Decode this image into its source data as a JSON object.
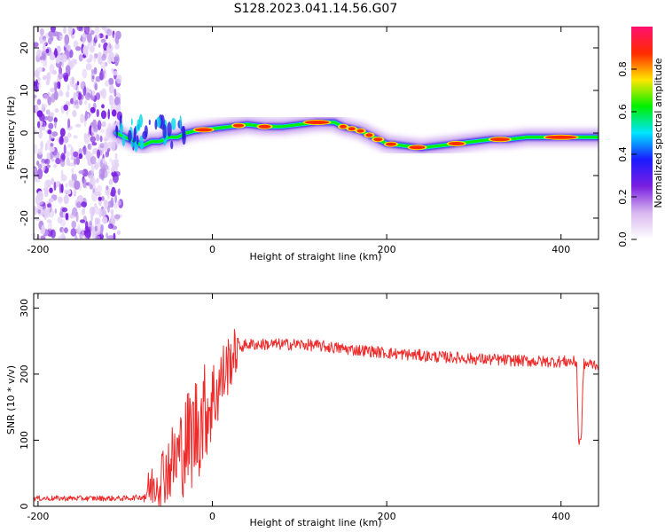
{
  "figure": {
    "title": "S128.2023.041.14.56.G07"
  },
  "colors": {
    "snr_line": "#ee2a2a",
    "axis": "#000000",
    "background": "#ffffff",
    "colormap": [
      "#ffffff",
      "#d9b8f0",
      "#7a1fe0",
      "#1a1aff",
      "#00e5ff",
      "#00f000",
      "#ffe600",
      "#ff2a00",
      "#ff1070"
    ]
  },
  "chart_data": [
    {
      "type": "heatmap",
      "name": "spectrogram",
      "title": "",
      "xlabel": "Height of straight line (km)",
      "ylabel": "Frequency (Hz)",
      "xlim": [
        -205,
        443
      ],
      "ylim": [
        -25,
        25
      ],
      "x_ticks": [
        -200,
        0,
        200,
        400
      ],
      "y_ticks": [
        -20,
        -10,
        0,
        10,
        20
      ],
      "grid": false,
      "noise_region_x": [
        -205,
        -105
      ],
      "ridge": {
        "x": [
          -110,
          -100,
          -90,
          -80,
          -70,
          -60,
          -50,
          -40,
          -30,
          -20,
          0,
          20,
          40,
          60,
          80,
          100,
          120,
          140,
          150,
          160,
          170,
          180,
          190,
          200,
          220,
          240,
          260,
          280,
          300,
          320,
          340,
          360,
          380,
          400,
          420,
          443
        ],
        "y": [
          0,
          -1,
          -2,
          -3,
          -2,
          -2,
          -1,
          -1,
          0,
          0.5,
          1,
          1.5,
          2,
          1.5,
          1.5,
          2,
          2.5,
          2.5,
          1.5,
          1,
          0.5,
          -0.5,
          -1.5,
          -2.5,
          -3,
          -3.5,
          -3,
          -2.5,
          -2,
          -1.5,
          -1.5,
          -1,
          -1,
          -1,
          -1,
          -1
        ]
      },
      "colorbar": {
        "label": "Normalized spectral amplitude",
        "range": [
          0,
          1
        ],
        "ticks": [
          "0.0",
          "0.2",
          "0.4",
          "0.6",
          "0.8"
        ]
      }
    },
    {
      "type": "line",
      "name": "snr",
      "title": "",
      "xlabel": "Height of straight line (km)",
      "ylabel": "SNR (10 * v/v)",
      "xlim": [
        -205,
        443
      ],
      "ylim": [
        0,
        322
      ],
      "x_ticks": [
        -200,
        0,
        200,
        400
      ],
      "y_ticks": [
        0,
        100,
        200,
        300
      ],
      "grid": false,
      "series": [
        {
          "x": [
            -205,
            -180,
            -160,
            -140,
            -120,
            -100,
            -80,
            -70,
            -60,
            -50,
            -40,
            -30,
            -20,
            -10,
            0,
            10,
            20,
            30,
            40,
            60,
            80,
            100,
            120,
            140,
            160,
            180,
            200,
            220,
            240,
            260,
            280,
            300,
            320,
            340,
            360,
            380,
            400,
            410,
            418,
            420,
            423,
            426,
            430,
            443
          ],
          "y": [
            12,
            12,
            12,
            12,
            12,
            12,
            14,
            30,
            45,
            60,
            75,
            95,
            115,
            140,
            160,
            190,
            220,
            240,
            245,
            245,
            245,
            245,
            243,
            240,
            237,
            235,
            232,
            230,
            228,
            226,
            225,
            223,
            222,
            221,
            220,
            219,
            219,
            219,
            218,
            100,
            95,
            215,
            215,
            215
          ]
        }
      ]
    }
  ]
}
